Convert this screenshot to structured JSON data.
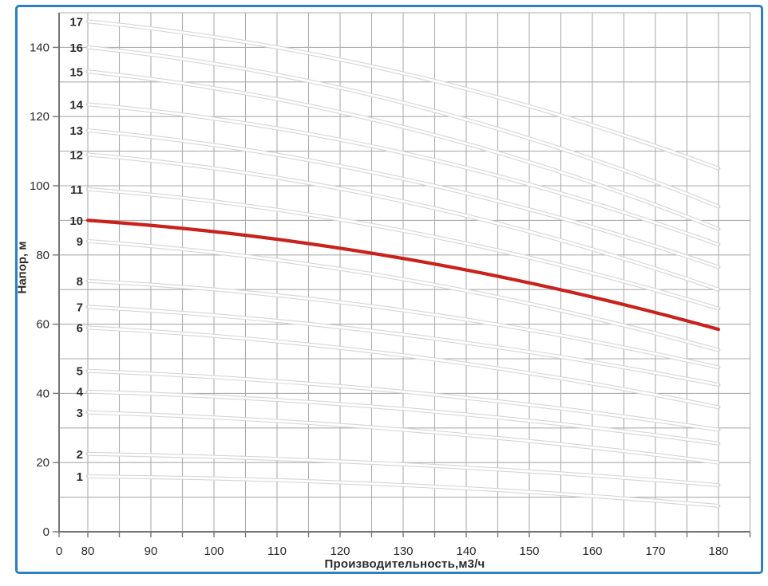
{
  "chart_data": {
    "type": "line",
    "title": "",
    "xlabel": "Производительность,м3/ч",
    "ylabel": "Напор, м",
    "x_axis": {
      "labeled_ticks": [
        0,
        80,
        90,
        100,
        110,
        120,
        130,
        140,
        150,
        160,
        170,
        180
      ],
      "minor_grid_step": 5,
      "curve_domain": [
        80,
        180
      ],
      "grid_end": 185,
      "break_after_zero": true
    },
    "y_axis": {
      "min": 0,
      "max": 150,
      "labeled_ticks": [
        0,
        20,
        40,
        60,
        80,
        100,
        120,
        140
      ],
      "grid_step": 10
    },
    "grid": true,
    "legend_position": "curve-start-labels",
    "x": [
      80,
      130,
      180
    ],
    "series": [
      {
        "name": "1",
        "values": [
          16,
          13.5,
          7.5
        ],
        "highlight": false
      },
      {
        "name": "2",
        "values": [
          22.5,
          19.5,
          13.5
        ],
        "highlight": false
      },
      {
        "name": "3",
        "values": [
          34.5,
          29.5,
          20
        ],
        "highlight": false
      },
      {
        "name": "4",
        "values": [
          40.5,
          35.5,
          25.5
        ],
        "highlight": false
      },
      {
        "name": "5",
        "values": [
          46.5,
          40.5,
          29.5
        ],
        "highlight": false
      },
      {
        "name": "6",
        "values": [
          59,
          51,
          36
        ],
        "highlight": false
      },
      {
        "name": "7",
        "values": [
          65,
          57,
          42.5
        ],
        "highlight": false
      },
      {
        "name": "8",
        "values": [
          72.5,
          64,
          47.5
        ],
        "highlight": false
      },
      {
        "name": "9",
        "values": [
          84,
          73,
          52.5
        ],
        "highlight": false
      },
      {
        "name": "10",
        "values": [
          90,
          79,
          58.5
        ],
        "highlight": true
      },
      {
        "name": "11",
        "values": [
          99,
          87,
          64.5
        ],
        "highlight": false
      },
      {
        "name": "12",
        "values": [
          109,
          95.5,
          70
        ],
        "highlight": false
      },
      {
        "name": "13",
        "values": [
          116,
          102,
          76.5
        ],
        "highlight": false
      },
      {
        "name": "14",
        "values": [
          123.5,
          109.5,
          83
        ],
        "highlight": false
      },
      {
        "name": "15",
        "values": [
          133,
          117,
          87.5
        ],
        "highlight": false
      },
      {
        "name": "16",
        "values": [
          140,
          124,
          94
        ],
        "highlight": false
      },
      {
        "name": "17",
        "values": [
          147.5,
          132.5,
          105
        ],
        "highlight": false
      }
    ],
    "colors": {
      "highlight": "#c9211c",
      "curve_edge": "#d5d5d5",
      "curve_core": "#ffffff",
      "grid": "#acacac",
      "axis": "#757575",
      "text": "#2b2b2b",
      "frame": "#2b7fc2"
    }
  }
}
